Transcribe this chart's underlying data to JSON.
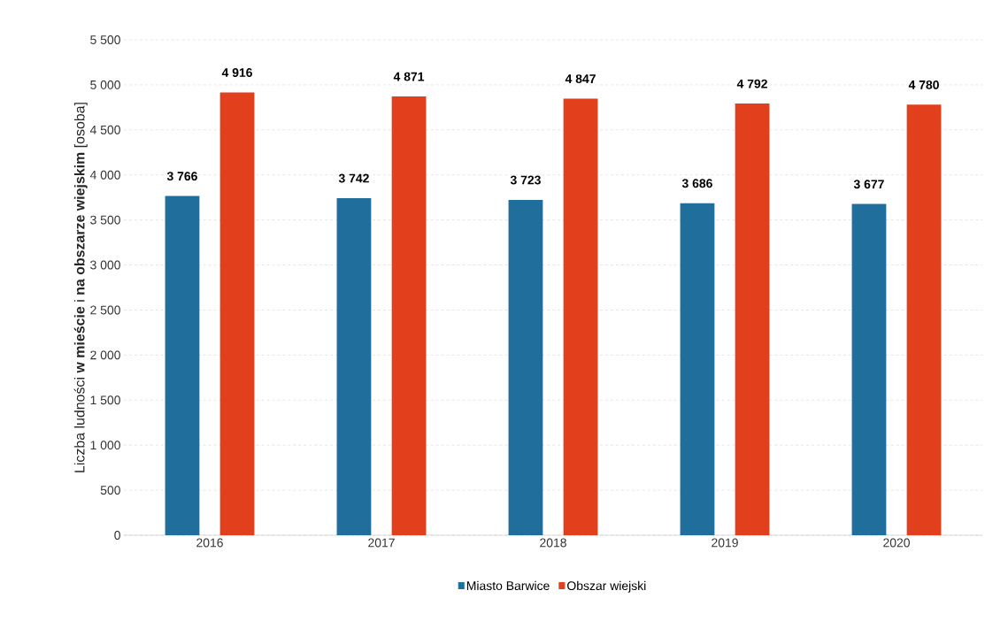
{
  "chart_data": {
    "type": "bar",
    "ylabel": "Liczba ludności **w mieście** i **na obszarze wiejskim** [osoba]",
    "categories": [
      "2016",
      "2017",
      "2018",
      "2019",
      "2020"
    ],
    "series": [
      {
        "name": "Miasto Barwice",
        "color": "#1f6e9c",
        "values": [
          3766,
          3742,
          3723,
          3686,
          3677
        ],
        "value_labels": [
          "3 766",
          "3 742",
          "3 723",
          "3 686",
          "3 677"
        ]
      },
      {
        "name": "Obszar wiejski",
        "color": "#e2401c",
        "values": [
          4916,
          4871,
          4847,
          4792,
          4780
        ],
        "value_labels": [
          "4 916",
          "4 871",
          "4 847",
          "4 792",
          "4 780"
        ]
      }
    ],
    "ylim": [
      0,
      5500
    ],
    "yticks": [
      0,
      500,
      {
        "value": 1000,
        "label": "1 000"
      },
      {
        "value": 1500,
        "label": "1 500"
      },
      {
        "value": 2000,
        "label": "2 000"
      },
      {
        "value": 2500,
        "label": "2 500"
      },
      {
        "value": 3000,
        "label": "3 000"
      },
      {
        "value": 3500,
        "label": "3 500"
      },
      {
        "value": 4000,
        "label": "4 000"
      },
      {
        "value": 4500,
        "label": "4 500"
      },
      {
        "value": 5000,
        "label": "5 000"
      },
      {
        "value": 5500,
        "label": "5 500"
      }
    ],
    "grid": "y",
    "legend": "bottom"
  }
}
